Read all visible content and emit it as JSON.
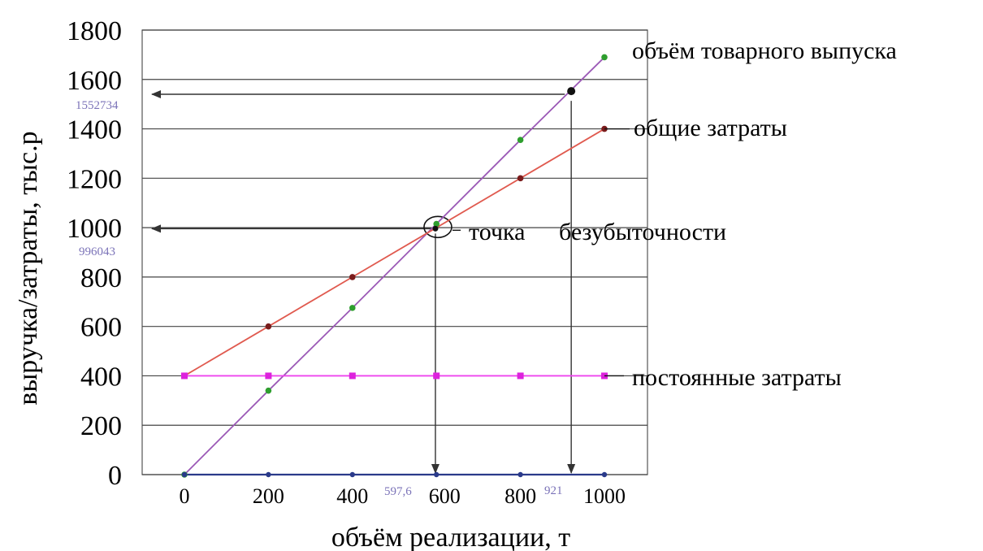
{
  "chart_data": {
    "type": "line",
    "xlabel": "объём реализации, т",
    "ylabel": "выручка/затраты, тыс.р",
    "xlim": [
      -100,
      1100
    ],
    "ylim": [
      0,
      1800
    ],
    "x_ticks": [
      "0",
      "200",
      "400",
      "600",
      "800",
      "1000"
    ],
    "y_ticks": [
      "0",
      "200",
      "400",
      "600",
      "800",
      "1000",
      "1200",
      "1400",
      "1600",
      "1800"
    ],
    "grid": "horizontal",
    "series": [
      {
        "name": "объём товарного выпуска",
        "color": "#9b59b6",
        "marker_color": "#2e9e2e",
        "x": [
          0,
          200,
          400,
          600,
          800,
          1000
        ],
        "y": [
          0,
          340,
          675,
          1015,
          1355,
          1690
        ]
      },
      {
        "name": "общие затраты",
        "color": "#e05a4f",
        "marker_color": "#7a1c1c",
        "x": [
          0,
          200,
          400,
          800,
          1000
        ],
        "y": [
          400,
          600,
          800,
          1200,
          1400
        ]
      },
      {
        "name": "постоянные затраты",
        "color": "#ee44ee",
        "marker_color": "#dd22dd",
        "x": [
          0,
          200,
          400,
          600,
          800,
          1000
        ],
        "y": [
          400,
          400,
          400,
          400,
          400,
          400
        ]
      },
      {
        "name": "",
        "color": "#2a3a8a",
        "marker_color": "#2a3a8a",
        "x": [
          0,
          200,
          400,
          600,
          800,
          1000
        ],
        "y": [
          0,
          0,
          0,
          0,
          0,
          0
        ]
      }
    ],
    "annotations": {
      "break_even_label_1": "точка",
      "break_even_label_2": "безубыточности",
      "break_even": {
        "x": 597.6,
        "y": 996.043
      },
      "break_even_x_text": "597,6",
      "break_even_y_text": "996043",
      "target": {
        "x": 921,
        "y": 1552.734
      },
      "target_x_text": "921",
      "target_y_text": "1552734"
    },
    "annotation_color": "#7b73b8"
  }
}
